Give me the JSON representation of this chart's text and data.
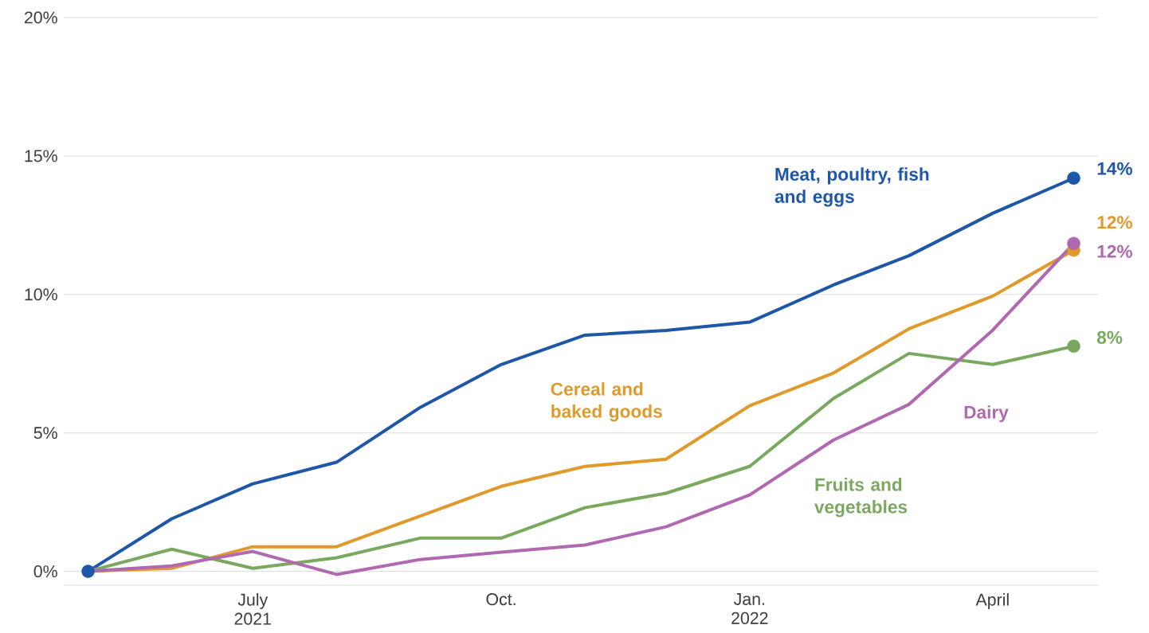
{
  "chart_data": {
    "type": "line",
    "x": [
      "2021-05",
      "2021-06",
      "2021-07",
      "2021-08",
      "2021-09",
      "2021-10",
      "2021-11",
      "2021-12",
      "2022-01",
      "2022-02",
      "2022-03",
      "2022-04",
      "2022-05"
    ],
    "series": [
      {
        "name": "Meat, poultry, fish and eggs",
        "color": "#1f57a8",
        "values": [
          0,
          1.9,
          3.16,
          3.94,
          5.92,
          7.47,
          8.53,
          8.7,
          9.0,
          10.34,
          11.4,
          12.93,
          14.2
        ],
        "value_labels": [
          null,
          null,
          null,
          null,
          null,
          null,
          null,
          null,
          null,
          null,
          null,
          null,
          "14%"
        ]
      },
      {
        "name": "Cereal and baked goods",
        "color": "#e09a2c",
        "values": [
          0,
          0.11,
          0.89,
          0.89,
          2.0,
          3.07,
          3.79,
          4.05,
          5.98,
          7.16,
          8.76,
          9.94,
          11.6
        ],
        "value_labels": [
          null,
          null,
          null,
          null,
          null,
          null,
          null,
          null,
          null,
          null,
          null,
          null,
          "12%"
        ]
      },
      {
        "name": "Fruits and vegetables",
        "color": "#7ba85f",
        "values": [
          0,
          0.8,
          0.11,
          0.49,
          1.2,
          1.2,
          2.3,
          2.82,
          3.79,
          6.24,
          7.87,
          7.47,
          8.13
        ],
        "value_labels": [
          null,
          null,
          null,
          null,
          null,
          null,
          null,
          null,
          null,
          null,
          null,
          null,
          "8%"
        ]
      },
      {
        "name": "Dairy",
        "color": "#b068b0",
        "values": [
          0,
          0.2,
          0.72,
          -0.11,
          0.43,
          0.69,
          0.95,
          1.61,
          2.76,
          4.74,
          6.03,
          8.71,
          11.84
        ],
        "value_labels": [
          null,
          null,
          null,
          null,
          null,
          null,
          null,
          null,
          null,
          null,
          null,
          null,
          "12%"
        ]
      }
    ],
    "xlim": [
      "2021-04-22",
      "2022-05-10"
    ],
    "xticks": [
      {
        "value": "2021-07",
        "label": "July 2021"
      },
      {
        "value": "2021-10",
        "label": "Oct."
      },
      {
        "value": "2022-01",
        "label": "Jan. 2022"
      },
      {
        "value": "2022-04",
        "label": "April"
      }
    ],
    "ylim": [
      -0.5,
      20
    ],
    "yticks": [
      {
        "value": 0,
        "label": "0%"
      },
      {
        "value": 5,
        "label": "5%"
      },
      {
        "value": 10,
        "label": "10%"
      },
      {
        "value": 15,
        "label": "15%"
      },
      {
        "value": 20,
        "label": "20%"
      }
    ],
    "grid": "y",
    "legend": false,
    "line_style": "solid"
  }
}
